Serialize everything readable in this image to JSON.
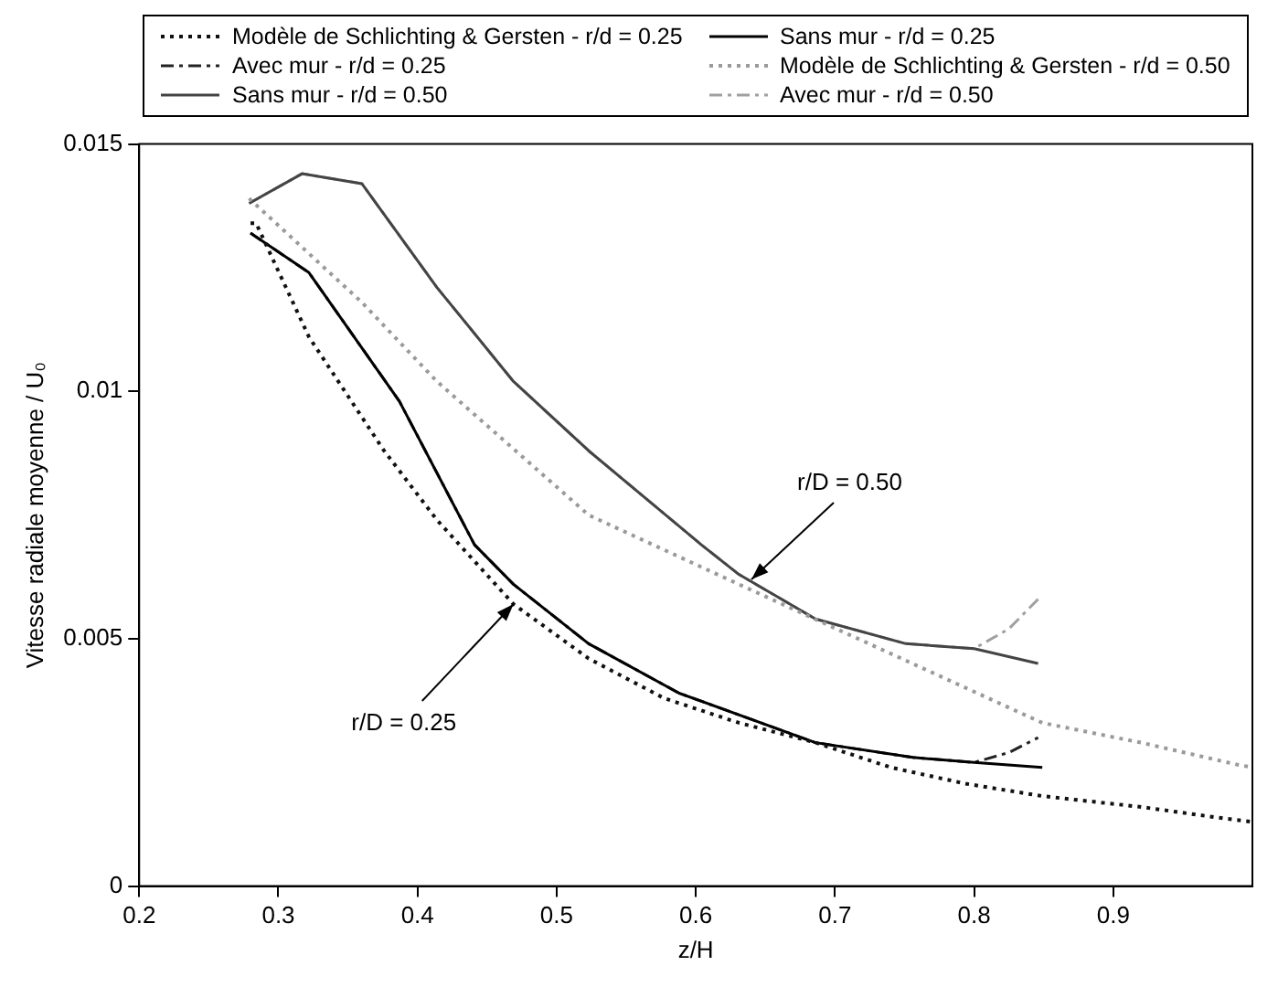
{
  "chart_data": {
    "type": "line",
    "xlabel": "z/H",
    "ylabel": "Vitesse radiale moyenne / U₀",
    "xlim": [
      0.2,
      1.0
    ],
    "xticks": [
      0.2,
      0.3,
      0.4,
      0.5,
      0.6,
      0.7,
      0.8,
      0.9
    ],
    "ylim": [
      0,
      0.015
    ],
    "yticks": [
      0,
      0.005,
      0.01,
      0.015
    ],
    "grid": false,
    "legend": "top",
    "marker": "none",
    "annotations": [
      {
        "text": "r/D = 0.50",
        "x": 0.64,
        "y": 0.0062
      },
      {
        "text": "r/D = 0.25",
        "x": 0.469,
        "y": 0.0057
      }
    ],
    "series": [
      {
        "name": "Modèle de Schlichting & Gersten - r/d = 0.25",
        "color": "#111111",
        "line_style": "dotted",
        "x": [
          0.28,
          0.284,
          0.322,
          0.376,
          0.414,
          0.469,
          0.523,
          0.577,
          0.631,
          0.686,
          0.74,
          0.794,
          0.849,
          0.92,
          0.979,
          1.0
        ],
        "values": [
          0.0134,
          0.0134,
          0.0111,
          0.0088,
          0.0074,
          0.0057,
          0.0046,
          0.0038,
          0.0033,
          0.0029,
          0.0024,
          0.00207,
          0.00182,
          0.0016,
          0.00137,
          0.0013
        ]
      },
      {
        "name": "Sans mur - r/d = 0.25",
        "color": "#000000",
        "line_style": "solid",
        "x": [
          0.28,
          0.322,
          0.387,
          0.441,
          0.469,
          0.523,
          0.588,
          0.686,
          0.756,
          0.8,
          0.849
        ],
        "values": [
          0.0132,
          0.0124,
          0.0098,
          0.0069,
          0.0061,
          0.0049,
          0.0039,
          0.0029,
          0.0026,
          0.0025,
          0.0024
        ]
      },
      {
        "name": "Avec mur - r/d = 0.25",
        "color": "#222222",
        "line_style": "dashed",
        "x": [
          0.28,
          0.322,
          0.387,
          0.441,
          0.469,
          0.523,
          0.588,
          0.686,
          0.756,
          0.8,
          0.825,
          0.846
        ],
        "values": [
          0.0132,
          0.0124,
          0.0098,
          0.0069,
          0.0061,
          0.0049,
          0.0039,
          0.0029,
          0.0026,
          0.0025,
          0.0027,
          0.003
        ]
      },
      {
        "name": "Modèle de Schlichting & Gersten - r/d = 0.50",
        "color": "#9a9a9a",
        "line_style": "dotted",
        "x": [
          0.279,
          0.36,
          0.414,
          0.523,
          0.631,
          0.74,
          0.849,
          0.92,
          0.99,
          1.0
        ],
        "values": [
          0.0139,
          0.0118,
          0.0102,
          0.0075,
          0.0061,
          0.0047,
          0.0033,
          0.0029,
          0.00245,
          0.0024
        ]
      },
      {
        "name": "Sans mur - r/d = 0.50",
        "color": "#444444",
        "line_style": "solid",
        "x": [
          0.279,
          0.317,
          0.36,
          0.414,
          0.469,
          0.523,
          0.604,
          0.631,
          0.686,
          0.751,
          0.8,
          0.846
        ],
        "values": [
          0.0138,
          0.0144,
          0.0142,
          0.0121,
          0.0102,
          0.0088,
          0.0069,
          0.0063,
          0.0054,
          0.0049,
          0.0048,
          0.0045
        ]
      },
      {
        "name": "Avec mur - r/d = 0.50",
        "color": "#a0a0a0",
        "line_style": "dashed",
        "x": [
          0.279,
          0.317,
          0.36,
          0.414,
          0.469,
          0.523,
          0.604,
          0.631,
          0.686,
          0.751,
          0.8,
          0.825,
          0.846
        ],
        "values": [
          0.0138,
          0.0144,
          0.0142,
          0.0121,
          0.0102,
          0.0088,
          0.0069,
          0.0063,
          0.0054,
          0.0049,
          0.0048,
          0.0052,
          0.0058
        ]
      }
    ]
  }
}
